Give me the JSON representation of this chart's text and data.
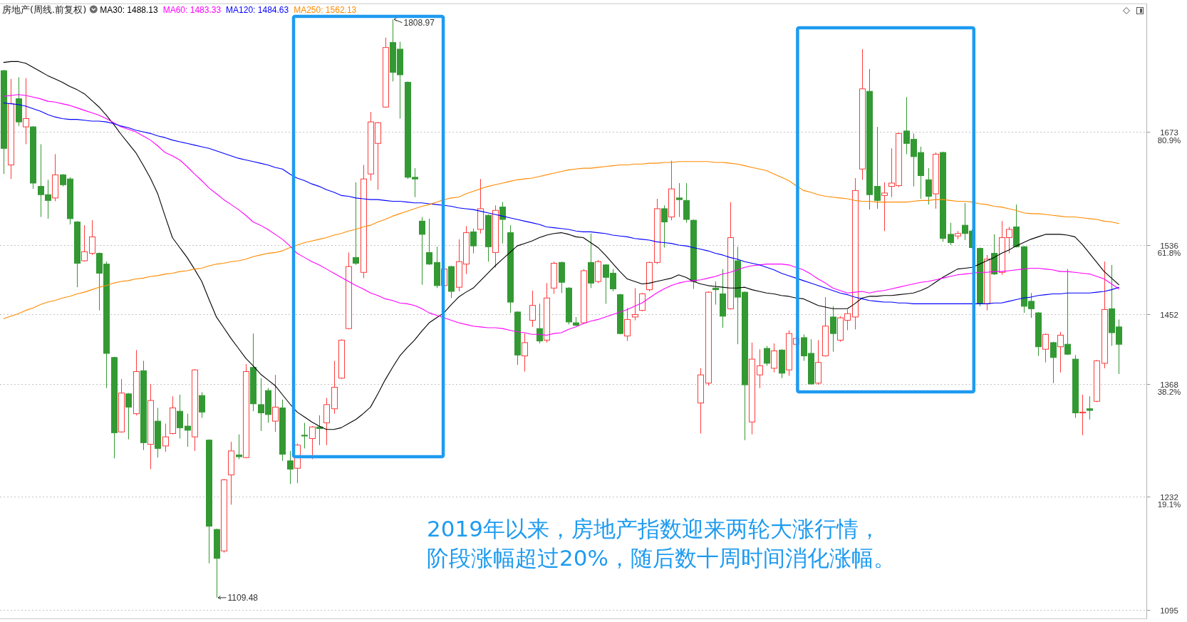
{
  "chart_data": {
    "type": "candlestick",
    "title": "房地产(周线.前复权)",
    "categories": [
      null,
      null,
      null,
      null,
      null,
      null,
      null,
      null,
      null,
      null,
      null,
      null,
      null,
      null,
      null,
      null,
      null,
      null,
      null,
      null,
      null,
      null,
      null,
      null,
      null,
      null,
      null,
      null,
      null,
      null,
      null,
      null,
      null,
      null,
      null,
      null,
      null,
      null,
      null,
      null,
      null,
      null,
      null,
      null,
      null,
      null,
      null,
      null,
      null,
      null,
      null,
      null,
      null,
      null,
      null,
      null,
      null,
      null,
      null,
      null,
      null,
      null,
      null,
      null,
      null,
      null,
      null,
      null,
      null,
      null,
      null,
      null,
      null,
      null,
      null,
      null,
      null,
      null,
      null,
      null,
      null,
      null,
      null,
      null,
      null,
      null,
      null,
      null,
      null,
      null,
      null,
      null,
      null,
      null,
      null,
      null,
      null,
      null,
      null,
      null,
      null,
      null,
      null,
      null,
      null,
      null,
      null,
      null,
      null,
      null,
      null,
      null,
      null,
      null,
      null,
      null,
      null,
      null,
      null,
      null,
      null,
      null,
      null,
      null,
      null,
      null,
      null,
      null,
      null,
      null,
      null,
      null,
      null,
      null,
      null,
      null,
      null,
      null,
      null,
      null,
      null,
      null,
      null,
      null,
      null,
      null,
      null,
      null,
      null,
      null,
      null,
      null,
      null
    ],
    "series": [
      {
        "type": "candlestick",
        "ohlc": [
          [
            1747,
            1748,
            1622,
            1653
          ],
          [
            1633,
            1737,
            1616,
            1707
          ],
          [
            1713,
            1739,
            1680,
            1685
          ],
          [
            1679,
            1738,
            1658,
            1689
          ],
          [
            1679,
            1680,
            1604,
            1611
          ],
          [
            1607,
            1658,
            1570,
            1597
          ],
          [
            1597,
            1615,
            1568,
            1590
          ],
          [
            1593,
            1646,
            1589,
            1621
          ],
          [
            1621,
            1622,
            1607,
            1609
          ],
          [
            1616,
            1618,
            1561,
            1568
          ],
          [
            1564,
            1565,
            1485,
            1514
          ],
          [
            1517,
            1560,
            1516,
            1528
          ],
          [
            1526,
            1566,
            1524,
            1546
          ],
          [
            1526,
            1527,
            1457,
            1502
          ],
          [
            1513,
            1516,
            1363,
            1405
          ],
          [
            1400,
            1401,
            1278,
            1309
          ],
          [
            1310,
            1374,
            1309,
            1357
          ],
          [
            1356,
            1357,
            1301,
            1340
          ],
          [
            1332,
            1409,
            1330,
            1383
          ],
          [
            1384,
            1396,
            1288,
            1297
          ],
          [
            1295,
            1368,
            1265,
            1348
          ],
          [
            1323,
            1339,
            1279,
            1290
          ],
          [
            1293,
            1320,
            1286,
            1304
          ],
          [
            1308,
            1353,
            1307,
            1339
          ],
          [
            1335,
            1355,
            1302,
            1315
          ],
          [
            1317,
            1332,
            1292,
            1312
          ],
          [
            1304,
            1386,
            1287,
            1385
          ],
          [
            1354,
            1358,
            1327,
            1334
          ],
          [
            1300,
            1301,
            1151,
            1196
          ],
          [
            1192,
            1193,
            1109.48,
            1157
          ],
          [
            1166,
            1253,
            1164,
            1252
          ],
          [
            1258,
            1298,
            1222,
            1287
          ],
          [
            1282,
            1307,
            1277,
            1280
          ],
          [
            1279,
            1392,
            1278,
            1383
          ],
          [
            1388,
            1429,
            1335,
            1344
          ],
          [
            1343,
            1375,
            1311,
            1333
          ],
          [
            1360,
            1363,
            1321,
            1331
          ],
          [
            1323,
            1379,
            1310,
            1340
          ],
          [
            1339,
            1349,
            1275,
            1283
          ],
          [
            1275,
            1287,
            1247,
            1265
          ],
          [
            1266,
            1296,
            1248,
            1294
          ],
          [
            1306,
            1321,
            1290,
            1305
          ],
          [
            1302,
            1317,
            1277,
            1316
          ],
          [
            1316,
            1330,
            1294,
            1314
          ],
          [
            1321,
            1351,
            1294,
            1343
          ],
          [
            1338,
            1396,
            1332,
            1364
          ],
          [
            1375,
            1422,
            1374,
            1421
          ],
          [
            1435,
            1527,
            1434,
            1510
          ],
          [
            1521,
            1612,
            1512,
            1514
          ],
          [
            1503,
            1633,
            1496,
            1616
          ],
          [
            1622,
            1697,
            1614,
            1685
          ],
          [
            1659,
            1685,
            1603,
            1684
          ],
          [
            1703,
            1787,
            1702,
            1775
          ],
          [
            1781,
            1808.97,
            1734,
            1745
          ],
          [
            1773,
            1782,
            1689,
            1742
          ],
          [
            1733,
            1734,
            1616,
            1618
          ],
          [
            1618,
            1629,
            1594,
            1616
          ],
          [
            1565,
            1570,
            1488,
            1549
          ],
          [
            1527,
            1568,
            1512,
            1513
          ],
          [
            1515,
            1534,
            1484,
            1487
          ],
          [
            1487,
            1509,
            1485,
            1507
          ],
          [
            1510,
            1511,
            1472,
            1480
          ],
          [
            1485,
            1543,
            1480,
            1516
          ],
          [
            1513,
            1559,
            1501,
            1551
          ],
          [
            1552,
            1556,
            1526,
            1535
          ],
          [
            1555,
            1616,
            1550,
            1580
          ],
          [
            1572,
            1573,
            1516,
            1534
          ],
          [
            1527,
            1584,
            1509,
            1578
          ],
          [
            1582,
            1588,
            1538,
            1567
          ],
          [
            1551,
            1560,
            1454,
            1467
          ],
          [
            1455,
            1456,
            1391,
            1403
          ],
          [
            1402,
            1429,
            1383,
            1418
          ],
          [
            1445,
            1481,
            1437,
            1463
          ],
          [
            1435,
            1465,
            1417,
            1420
          ],
          [
            1421,
            1490,
            1418,
            1472
          ],
          [
            1484,
            1516,
            1477,
            1514
          ],
          [
            1515,
            1516,
            1478,
            1491
          ],
          [
            1484,
            1485,
            1440,
            1443
          ],
          [
            1442,
            1449,
            1438,
            1439
          ],
          [
            1442,
            1507,
            1441,
            1505
          ],
          [
            1515,
            1550,
            1484,
            1490
          ],
          [
            1492,
            1518,
            1490,
            1516
          ],
          [
            1512,
            1513,
            1465,
            1497
          ],
          [
            1502,
            1507,
            1480,
            1483
          ],
          [
            1476,
            1477,
            1428,
            1429
          ],
          [
            1426,
            1460,
            1420,
            1446
          ],
          [
            1449,
            1484,
            1445,
            1452
          ],
          [
            1457,
            1478,
            1456,
            1477
          ],
          [
            1482,
            1516,
            1480,
            1515
          ],
          [
            1515,
            1592,
            1513,
            1580
          ],
          [
            1580,
            1584,
            1533,
            1564
          ],
          [
            1570,
            1638,
            1566,
            1604
          ],
          [
            1593,
            1611,
            1570,
            1591
          ],
          [
            1590,
            1611,
            1563,
            1567
          ],
          [
            1566,
            1567,
            1483,
            1492
          ],
          [
            1345,
            1387,
            1308,
            1379
          ],
          [
            1369,
            1480,
            1366,
            1479
          ],
          [
            1484,
            1492,
            1464,
            1482
          ],
          [
            1477,
            1507,
            1436,
            1450
          ],
          [
            1459,
            1588,
            1458,
            1545
          ],
          [
            1517,
            1534,
            1416,
            1473
          ],
          [
            1479,
            1480,
            1300,
            1367
          ],
          [
            1322,
            1418,
            1307,
            1398
          ],
          [
            1379,
            1410,
            1363,
            1390
          ],
          [
            1411,
            1414,
            1390,
            1393
          ],
          [
            1387,
            1417,
            1382,
            1408
          ],
          [
            1409,
            1410,
            1375,
            1381
          ],
          [
            1385,
            1433,
            1378,
            1429
          ],
          [
            1416,
            1425,
            1414,
            1423
          ],
          [
            1424,
            1428,
            1396,
            1402
          ],
          [
            1405,
            1422,
            1367,
            1368
          ],
          [
            1369,
            1421,
            1367,
            1394
          ],
          [
            1402,
            1473,
            1401,
            1438
          ],
          [
            1449,
            1462,
            1407,
            1429
          ],
          [
            1421,
            1450,
            1419,
            1448
          ],
          [
            1445,
            1458,
            1433,
            1453
          ],
          [
            1449,
            1617,
            1434,
            1602
          ],
          [
            1628,
            1773,
            1615,
            1725
          ],
          [
            1722,
            1749,
            1579,
            1597
          ],
          [
            1607,
            1679,
            1580,
            1590
          ],
          [
            1596,
            1612,
            1553,
            1599
          ],
          [
            1607,
            1653,
            1594,
            1611
          ],
          [
            1608,
            1672,
            1606,
            1671
          ],
          [
            1674,
            1715,
            1646,
            1659
          ],
          [
            1664,
            1671,
            1607,
            1643
          ],
          [
            1648,
            1655,
            1592,
            1620
          ],
          [
            1615,
            1629,
            1585,
            1595
          ],
          [
            1598,
            1648,
            1580,
            1646
          ],
          [
            1648,
            1649,
            1540,
            1544
          ],
          [
            1549,
            1563,
            1536,
            1539
          ],
          [
            1547,
            1553,
            1543,
            1550
          ],
          [
            1560,
            1587,
            1542,
            1550
          ],
          [
            1553,
            1555,
            1532,
            1533
          ],
          [
            1532,
            1533,
            1462,
            1465
          ],
          [
            1465,
            1524,
            1457,
            1519
          ],
          [
            1526,
            1549,
            1500,
            1501
          ],
          [
            1503,
            1565,
            1500,
            1545
          ],
          [
            1545,
            1558,
            1526,
            1555
          ],
          [
            1558,
            1585,
            1533,
            1534
          ],
          [
            1534,
            1535,
            1454,
            1462
          ],
          [
            1468,
            1478,
            1448,
            1459
          ],
          [
            1454,
            1455,
            1402,
            1413
          ],
          [
            1410,
            1429,
            1394,
            1428
          ],
          [
            1418,
            1419,
            1369,
            1400
          ],
          [
            1413,
            1431,
            1382,
            1427
          ],
          [
            1416,
            1507,
            1403,
            1404
          ],
          [
            1398,
            1403,
            1327,
            1333
          ],
          [
            1333,
            1355,
            1306,
            1334
          ],
          [
            1338,
            1353,
            1325,
            1336
          ],
          [
            1347,
            1397,
            1346,
            1396
          ],
          [
            1393,
            1516,
            1387,
            1458
          ],
          [
            1459,
            1512,
            1414,
            1430
          ],
          [
            1437,
            1446,
            1380,
            1416
          ]
        ],
        "colors": [
          "#339933",
          "#ff3b3b",
          "#339933",
          "#ff3b3b",
          "#339933",
          "#339933",
          "#339933",
          "#ff3b3b",
          "#339933",
          "#339933",
          "#339933",
          "#ff3b3b",
          "#ff3b3b",
          "#339933",
          "#339933",
          "#339933",
          "#ff3b3b",
          "#339933",
          "#ff3b3b",
          "#339933",
          "#ff3b3b",
          "#339933",
          "#ff3b3b",
          "#ff3b3b",
          "#339933",
          "#339933",
          "#ff3b3b",
          "#339933",
          "#339933",
          "#339933",
          "#ff3b3b",
          "#ff3b3b",
          "#339933",
          "#ff3b3b",
          "#339933",
          "#339933",
          "#339933",
          "#ff3b3b",
          "#339933",
          "#339933",
          "#ff3b3b",
          "#339933",
          "#ff3b3b",
          "#339933",
          "#ff3b3b",
          "#ff3b3b",
          "#ff3b3b",
          "#ff3b3b",
          "#339933",
          "#ff3b3b",
          "#ff3b3b",
          "#ff3b3b",
          "#ff3b3b",
          "#339933",
          "#339933",
          "#339933",
          "#339933",
          "#339933",
          "#339933",
          "#339933",
          "#ff3b3b",
          "#339933",
          "#ff3b3b",
          "#ff3b3b",
          "#339933",
          "#ff3b3b",
          "#339933",
          "#ff3b3b",
          "#339933",
          "#339933",
          "#339933",
          "#ff3b3b",
          "#ff3b3b",
          "#339933",
          "#ff3b3b",
          "#ff3b3b",
          "#339933",
          "#339933",
          "#339933",
          "#ff3b3b",
          "#339933",
          "#ff3b3b",
          "#339933",
          "#339933",
          "#339933",
          "#ff3b3b",
          "#ff3b3b",
          "#ff3b3b",
          "#ff3b3b",
          "#ff3b3b",
          "#339933",
          "#ff3b3b",
          "#339933",
          "#339933",
          "#339933",
          "#ff3b3b",
          "#ff3b3b",
          "#339933",
          "#339933",
          "#ff3b3b",
          "#339933",
          "#339933",
          "#ff3b3b",
          "#ff3b3b",
          "#339933",
          "#ff3b3b",
          "#339933",
          "#ff3b3b",
          "#ff3b3b",
          "#339933",
          "#339933",
          "#ff3b3b",
          "#ff3b3b",
          "#339933",
          "#ff3b3b",
          "#ff3b3b",
          "#ff3b3b",
          "#ff3b3b",
          "#339933",
          "#339933",
          "#ff3b3b",
          "#ff3b3b",
          "#ff3b3b",
          "#339933",
          "#339933",
          "#339933",
          "#339933",
          "#ff3b3b",
          "#339933",
          "#339933",
          "#ff3b3b",
          "#339933",
          "#339933",
          "#339933",
          "#ff3b3b",
          "#339933",
          "#ff3b3b",
          "#ff3b3b",
          "#339933",
          "#339933",
          "#339933",
          "#339933",
          "#ff3b3b",
          "#339933",
          "#ff3b3b",
          "#339933",
          "#339933",
          "#ff3b3b",
          "#339933",
          "#ff3b3b",
          "#ff3b3b",
          "#339933",
          "#339933"
        ]
      },
      {
        "type": "line",
        "name": "MA30: 1488.13",
        "color": "#000000",
        "values": [
          1757,
          1758,
          1758,
          1756,
          1751,
          1746,
          1741,
          1737,
          1733,
          1728,
          1724,
          1719,
          1711,
          1703,
          1693,
          1682,
          1670,
          1659,
          1648,
          1633,
          1617,
          1598,
          1571,
          1545,
          1533,
          1521,
          1507,
          1492,
          1470,
          1449,
          1436,
          1423,
          1411,
          1399,
          1390,
          1380,
          1373,
          1366,
          1355,
          1344,
          1334,
          1328,
          1322,
          1317,
          1313,
          1313,
          1315,
          1320,
          1325,
          1332,
          1340,
          1356,
          1373,
          1388,
          1402,
          1412,
          1421,
          1432,
          1442,
          1448,
          1454,
          1464,
          1473,
          1479,
          1484,
          1493,
          1502,
          1511,
          1519,
          1527,
          1535,
          1538,
          1541,
          1545,
          1548,
          1550,
          1551,
          1549,
          1546,
          1545,
          1539,
          1533,
          1524,
          1514,
          1504,
          1495,
          1492,
          1489,
          1490,
          1492,
          1494,
          1496,
          1500,
          1497,
          1492,
          1489,
          1487,
          1486,
          1485,
          1484,
          1484,
          1485,
          1482,
          1480,
          1478,
          1477,
          1475,
          1474,
          1472,
          1471,
          1467,
          1463,
          1461,
          1459,
          1459,
          1459,
          1465,
          1472,
          1474,
          1474,
          1475,
          1475,
          1476,
          1477,
          1478,
          1481,
          1485,
          1491,
          1497,
          1502,
          1507,
          1508,
          1509,
          1513,
          1517,
          1521,
          1526,
          1530,
          1535,
          1539,
          1543,
          1546,
          1549,
          1549,
          1549,
          1548,
          1546,
          1537,
          1526,
          1515,
          1504,
          1496,
          1488
        ]
      },
      {
        "type": "line",
        "name": "MA60: 1483.33",
        "color": "#ff00ff",
        "values": [
          1716,
          1717,
          1718,
          1717,
          1715,
          1713,
          1710,
          1709,
          1707,
          1705,
          1702,
          1699,
          1696,
          1693,
          1689,
          1684,
          1679,
          1676,
          1673,
          1668,
          1663,
          1656,
          1648,
          1644,
          1639,
          1631,
          1622,
          1614,
          1605,
          1598,
          1591,
          1585,
          1579,
          1572,
          1564,
          1560,
          1555,
          1549,
          1543,
          1535,
          1526,
          1521,
          1516,
          1512,
          1507,
          1502,
          1497,
          1492,
          1487,
          1483,
          1478,
          1475,
          1471,
          1469,
          1466,
          1465,
          1463,
          1459,
          1454,
          1451,
          1448,
          1445,
          1442,
          1440,
          1438,
          1437,
          1436,
          1436,
          1435,
          1433,
          1431,
          1430,
          1428,
          1428,
          1427,
          1429,
          1430,
          1434,
          1437,
          1441,
          1444,
          1446,
          1449,
          1452,
          1455,
          1458,
          1462,
          1466,
          1472,
          1478,
          1483,
          1487,
          1490,
          1492,
          1493,
          1494,
          1496,
          1498,
          1501,
          1503,
          1506,
          1509,
          1511,
          1512,
          1513,
          1513,
          1513,
          1512,
          1509,
          1506,
          1501,
          1495,
          1490,
          1484,
          1481,
          1478,
          1479,
          1480,
          1478,
          1480,
          1481,
          1483,
          1485,
          1487,
          1489,
          1491,
          1492,
          1494,
          1496,
          1498,
          1500,
          1501,
          1502,
          1503,
          1503,
          1504,
          1504,
          1505,
          1506,
          1507,
          1508,
          1508,
          1507,
          1506,
          1504,
          1504,
          1503,
          1502,
          1501,
          1498,
          1495,
          1489,
          1483
        ]
      },
      {
        "type": "line",
        "name": "MA120: 1484.63",
        "color": "#0000ff",
        "values": [
          1708,
          1707,
          1706,
          1704,
          1701,
          1698,
          1694,
          1691,
          1689,
          1688,
          1688,
          1687,
          1686,
          1686,
          1685,
          1683,
          1680,
          1678,
          1675,
          1673,
          1671,
          1668,
          1666,
          1663,
          1661,
          1659,
          1657,
          1655,
          1653,
          1650,
          1647,
          1644,
          1641,
          1639,
          1637,
          1635,
          1633,
          1630,
          1628,
          1622,
          1617,
          1614,
          1610,
          1607,
          1603,
          1600,
          1596,
          1595,
          1593,
          1592,
          1591,
          1591,
          1590,
          1589,
          1589,
          1588,
          1587,
          1587,
          1586,
          1585,
          1584,
          1583,
          1581,
          1580,
          1579,
          1577,
          1575,
          1573,
          1571,
          1569,
          1567,
          1565,
          1563,
          1561,
          1558,
          1557,
          1556,
          1555,
          1553,
          1552,
          1552,
          1551,
          1550,
          1548,
          1547,
          1546,
          1544,
          1543,
          1542,
          1540,
          1539,
          1538,
          1536,
          1535,
          1533,
          1531,
          1529,
          1526,
          1524,
          1521,
          1519,
          1516,
          1514,
          1512,
          1509,
          1506,
          1502,
          1499,
          1496,
          1493,
          1490,
          1487,
          1484,
          1481,
          1478,
          1476,
          1473,
          1471,
          1469,
          1468,
          1467,
          1467,
          1466,
          1466,
          1465,
          1465,
          1465,
          1465,
          1465,
          1465,
          1465,
          1465,
          1465,
          1465,
          1465,
          1466,
          1466,
          1468,
          1470,
          1472,
          1473,
          1475,
          1476,
          1477,
          1477,
          1478,
          1478,
          1478,
          1478,
          1479,
          1480,
          1482,
          1485
        ]
      },
      {
        "type": "line",
        "name": "MA250: 1562.13",
        "color": "#ff8a00",
        "values": [
          1447,
          1450,
          1453,
          1457,
          1460,
          1464,
          1467,
          1469,
          1472,
          1474,
          1477,
          1479,
          1482,
          1485,
          1487,
          1490,
          1492,
          1493,
          1495,
          1496,
          1498,
          1499,
          1501,
          1502,
          1504,
          1505,
          1507,
          1508,
          1511,
          1513,
          1514,
          1516,
          1517,
          1519,
          1522,
          1524,
          1526,
          1527,
          1529,
          1533,
          1536,
          1539,
          1541,
          1543,
          1545,
          1548,
          1550,
          1553,
          1555,
          1558,
          1560,
          1564,
          1567,
          1571,
          1574,
          1577,
          1580,
          1583,
          1585,
          1588,
          1591,
          1593,
          1594,
          1598,
          1601,
          1604,
          1607,
          1609,
          1611,
          1613,
          1615,
          1616,
          1617,
          1619,
          1621,
          1623,
          1625,
          1627,
          1628,
          1629,
          1629,
          1630,
          1631,
          1632,
          1633,
          1633,
          1634,
          1634,
          1635,
          1635,
          1636,
          1636,
          1637,
          1637,
          1637,
          1637,
          1637,
          1636,
          1636,
          1635,
          1634,
          1632,
          1630,
          1628,
          1626,
          1622,
          1618,
          1614,
          1608,
          1602,
          1600,
          1597,
          1595,
          1594,
          1593,
          1592,
          1590,
          1589,
          1589,
          1588,
          1588,
          1588,
          1588,
          1588,
          1589,
          1590,
          1590,
          1591,
          1591,
          1590,
          1589,
          1589,
          1588,
          1586,
          1585,
          1583,
          1582,
          1580,
          1578,
          1575,
          1574,
          1574,
          1573,
          1572,
          1571,
          1570,
          1570,
          1569,
          1568,
          1567,
          1565,
          1564,
          1562
        ]
      }
    ],
    "ylim": [
      1084,
      1828
    ],
    "yticks": [
      1095,
      1232,
      1368,
      1452,
      1536,
      1673
    ],
    "y2lim": [
      -1.54,
      102.67
    ],
    "y2ticks": [
      {
        "value": 19.1,
        "label": "19.1%"
      },
      {
        "value": 38.2,
        "label": "38.2%"
      },
      {
        "value": 61.8,
        "label": "61.8%"
      },
      {
        "value": 80.9,
        "label": "80.9%"
      }
    ],
    "grid": "y",
    "legend": "top left",
    "annotations": [
      "1808.97",
      "1109.48",
      "2019年以来，房地产指数迎来两轮大涨行情，",
      "阶段涨幅超过20%，随后数十周时间消化涨幅。"
    ]
  }
}
